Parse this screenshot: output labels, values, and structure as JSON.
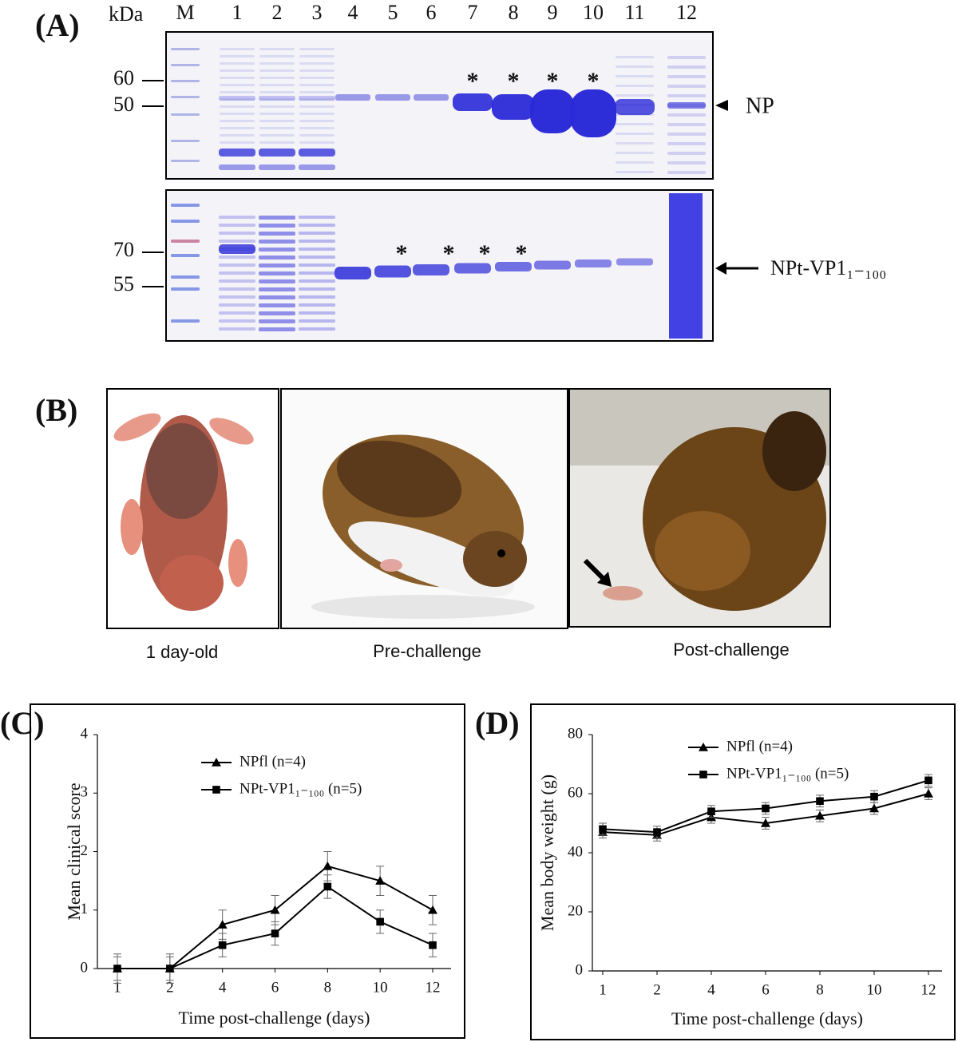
{
  "figure": {
    "panels": [
      "(A)",
      "(B)",
      "(C)",
      "(D)"
    ],
    "gel": {
      "kda": "kDa",
      "lanes": [
        "M",
        "1",
        "2",
        "3",
        "4",
        "5",
        "6",
        "7",
        "8",
        "9",
        "10",
        "11",
        "12"
      ],
      "top_markers": [
        "60",
        "50"
      ],
      "bottom_markers": [
        "70",
        "55"
      ],
      "top_band": "NP",
      "bottom_band": "NPt-VP1₁₋₁₀₀",
      "asterisk": "*"
    },
    "photos": [
      "1 day-old",
      "Pre-challenge",
      "Post-challenge"
    ]
  },
  "chart_data": [
    {
      "type": "line",
      "ylabel": "Mean clinical score",
      "xlabel": "Time post-challenge  (days)",
      "categories": [
        "1",
        "2",
        "4",
        "6",
        "8",
        "10",
        "12"
      ],
      "ylim": [
        0,
        4
      ],
      "yticks": [
        0,
        1,
        2,
        3,
        4
      ],
      "series": [
        {
          "name": "NPfl (n=4)",
          "color": "#000000",
          "marker": "triangle",
          "values": [
            0,
            0,
            0.75,
            1,
            1.75,
            1.5,
            1
          ],
          "errors": [
            0.25,
            0.25,
            0.25,
            0.25,
            0.25,
            0.25,
            0.25
          ]
        },
        {
          "name": "NPt-VP1₁₋₁₀₀ (n=5)",
          "color": "#000000",
          "marker": "square",
          "values": [
            0,
            0,
            0.4,
            0.6,
            1.4,
            0.8,
            0.4
          ],
          "errors": [
            0.2,
            0.2,
            0.2,
            0.2,
            0.2,
            0.2,
            0.2
          ]
        }
      ]
    },
    {
      "type": "line",
      "ylabel": "Mean body weight (g)",
      "xlabel": "Time post-challenge  (days)",
      "categories": [
        "1",
        "2",
        "4",
        "6",
        "8",
        "10",
        "12"
      ],
      "ylim": [
        0,
        80
      ],
      "yticks": [
        0,
        20,
        40,
        60,
        80
      ],
      "series": [
        {
          "name": "NPfl (n=4)",
          "color": "#000000",
          "marker": "triangle",
          "values": [
            47,
            46,
            52,
            50,
            52.5,
            55,
            60
          ],
          "errors": [
            2,
            2,
            2,
            2,
            2,
            2,
            2
          ]
        },
        {
          "name": "NPt-VP1₁₋₁₀₀ (n=5)",
          "color": "#000000",
          "marker": "square",
          "values": [
            48,
            47,
            54,
            55,
            57.5,
            59,
            64.5
          ],
          "errors": [
            2,
            2,
            2,
            2,
            2,
            2,
            2
          ]
        }
      ]
    }
  ]
}
